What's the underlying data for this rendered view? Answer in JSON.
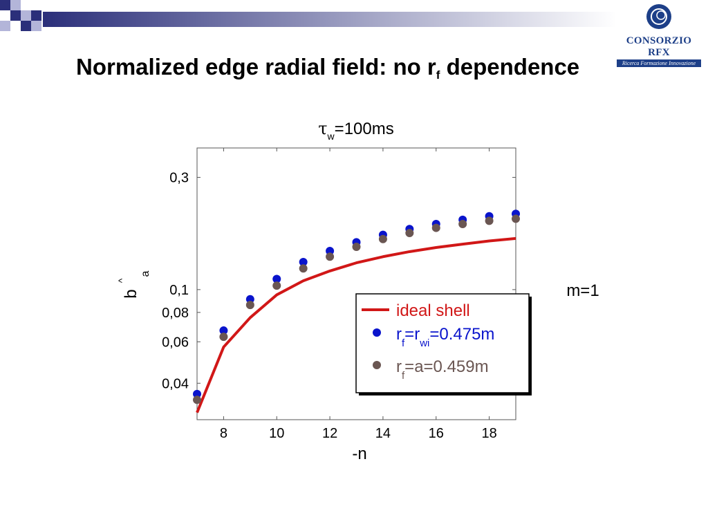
{
  "slide": {
    "title_main": "Normalized edge radial field: no r",
    "title_sub": "f",
    "title_end": " dependence"
  },
  "logo": {
    "name": "CONSORZIO RFX",
    "tagline": "Ricerca Formazione Innovazione"
  },
  "colors": {
    "banner_dark": "#2b2f7a",
    "square_light": "#b3b5d9",
    "ideal_shell": "#d11717",
    "rf_rwi": "#0a14cc",
    "rf_a": "#6a5652",
    "logo_blue": "#1d3f88"
  },
  "chart_data": {
    "type": "scatter",
    "title": "τw=100ms",
    "xlabel": "-n",
    "ylabel": "b^a",
    "annotation": "m=1",
    "y_scale": "log",
    "xlim": [
      7,
      19
    ],
    "ylim": [
      0.028,
      0.4
    ],
    "x_ticks": [
      8,
      10,
      12,
      14,
      16,
      18
    ],
    "y_ticks": [
      {
        "value": 0.3,
        "label": "0,3"
      },
      {
        "value": 0.1,
        "label": "0,1"
      },
      {
        "value": 0.08,
        "label": "0,08"
      },
      {
        "value": 0.06,
        "label": "0,06"
      },
      {
        "value": 0.04,
        "label": "0,04"
      }
    ],
    "legend_position": "center-right",
    "series": [
      {
        "name": "ideal shell",
        "legend_text": "ideal shell",
        "kind": "line",
        "color": "#d11717",
        "x": [
          7,
          8,
          9,
          10,
          11,
          12,
          13,
          14,
          15,
          16,
          17,
          18,
          19
        ],
        "y": [
          0.03,
          0.057,
          0.076,
          0.095,
          0.109,
          0.12,
          0.13,
          0.138,
          0.145,
          0.151,
          0.156,
          0.161,
          0.165
        ]
      },
      {
        "name": "rf=rwi=0.475m",
        "legend_parts": [
          "r",
          "f",
          "=r",
          "wi",
          "=0.475m"
        ],
        "kind": "points",
        "color": "#0a14cc",
        "x": [
          7,
          8,
          9,
          10,
          11,
          12,
          13,
          14,
          15,
          16,
          17,
          18,
          19
        ],
        "y": [
          0.036,
          0.067,
          0.091,
          0.111,
          0.131,
          0.146,
          0.159,
          0.171,
          0.181,
          0.19,
          0.198,
          0.205,
          0.21
        ]
      },
      {
        "name": "rf=a=0.459m",
        "legend_parts": [
          "r",
          "f",
          "=a=0.459m"
        ],
        "kind": "points",
        "color": "#6a5652",
        "x": [
          7,
          8,
          9,
          10,
          11,
          12,
          13,
          14,
          15,
          16,
          17,
          18,
          19
        ],
        "y": [
          0.034,
          0.063,
          0.086,
          0.104,
          0.123,
          0.138,
          0.152,
          0.164,
          0.174,
          0.183,
          0.19,
          0.196,
          0.2
        ]
      }
    ]
  }
}
